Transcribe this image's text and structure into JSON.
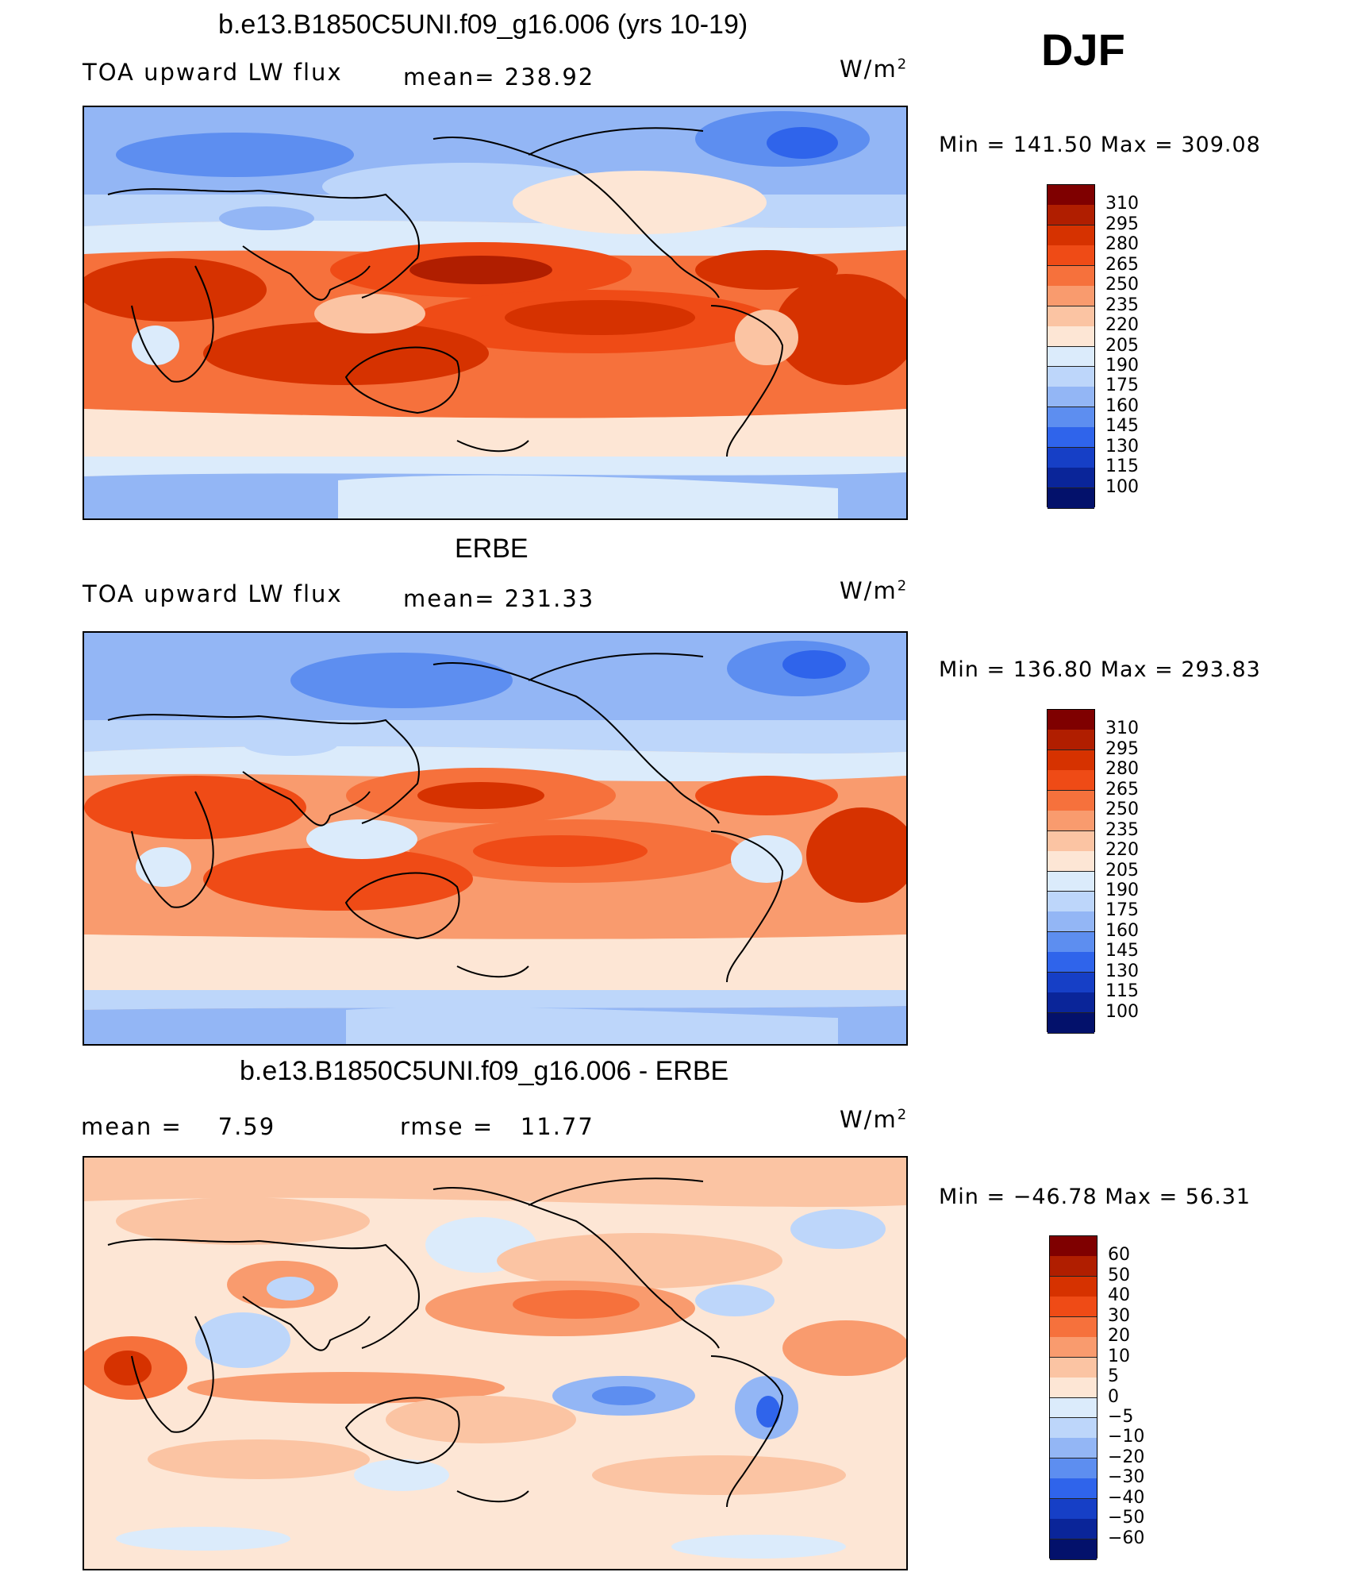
{
  "season": "DJF",
  "panels": [
    {
      "title": "b.e13.B1850C5UNI.f09_g16.006 (yrs 10-19)",
      "left_label": "TOA upward LW flux",
      "stat_label": "mean=",
      "stat_value": "238.92",
      "units_base": "W/m",
      "units_exp": "2",
      "minmax": "Min = 141.50 Max = 309.08"
    },
    {
      "title": "ERBE",
      "left_label": "TOA upward LW flux",
      "stat_label": "mean=",
      "stat_value": "231.33",
      "units_base": "W/m",
      "units_exp": "2",
      "minmax": "Min = 136.80 Max = 293.83"
    },
    {
      "title": "b.e13.B1850C5UNI.f09_g16.006 - ERBE",
      "left_label": "mean =",
      "left_value": "7.59",
      "stat_label": "rmse =",
      "stat_value": "11.77",
      "units_base": "W/m",
      "units_exp": "2",
      "minmax": "Min = −46.78 Max =  56.31"
    }
  ],
  "chart_data": [
    {
      "type": "heatmap",
      "title": "b.e13.B1850C5UNI.f09_g16.006 (yrs 10-19)",
      "variable": "TOA upward LW flux",
      "units": "W/m2",
      "mean": 238.92,
      "min": 141.5,
      "max": 309.08,
      "levels": [
        "310",
        "295",
        "280",
        "265",
        "250",
        "235",
        "220",
        "205",
        "190",
        "175",
        "160",
        "145",
        "130",
        "115",
        "100"
      ],
      "colors": [
        "#7f0000",
        "#b01e00",
        "#d63200",
        "#ef4b16",
        "#f6713c",
        "#f99b6e",
        "#fbc4a3",
        "#fde6d5",
        "#dbebfb",
        "#bdd6fa",
        "#93b6f5",
        "#5d8ef0",
        "#2f64eb",
        "#163fc6",
        "#0a2599",
        "#03116b"
      ]
    },
    {
      "type": "heatmap",
      "title": "ERBE",
      "variable": "TOA upward LW flux",
      "units": "W/m2",
      "mean": 231.33,
      "min": 136.8,
      "max": 293.83,
      "levels": [
        "310",
        "295",
        "280",
        "265",
        "250",
        "235",
        "220",
        "205",
        "190",
        "175",
        "160",
        "145",
        "130",
        "115",
        "100"
      ],
      "colors": [
        "#7f0000",
        "#b01e00",
        "#d63200",
        "#ef4b16",
        "#f6713c",
        "#f99b6e",
        "#fbc4a3",
        "#fde6d5",
        "#dbebfb",
        "#bdd6fa",
        "#93b6f5",
        "#5d8ef0",
        "#2f64eb",
        "#163fc6",
        "#0a2599",
        "#03116b"
      ]
    },
    {
      "type": "heatmap",
      "title": "b.e13.B1850C5UNI.f09_g16.006 - ERBE",
      "units": "W/m2",
      "mean": 7.59,
      "rmse": 11.77,
      "min": -46.78,
      "max": 56.31,
      "levels": [
        "60",
        "50",
        "40",
        "30",
        "20",
        "10",
        "5",
        "0",
        "−5",
        "−10",
        "−20",
        "−30",
        "−40",
        "−50",
        "−60"
      ],
      "colors": [
        "#7f0000",
        "#b01e00",
        "#d63200",
        "#ef4b16",
        "#f6713c",
        "#f99b6e",
        "#fbc4a3",
        "#fde6d5",
        "#dbebfb",
        "#bdd6fa",
        "#93b6f5",
        "#5d8ef0",
        "#2f64eb",
        "#163fc6",
        "#0a2599",
        "#03116b"
      ]
    }
  ]
}
